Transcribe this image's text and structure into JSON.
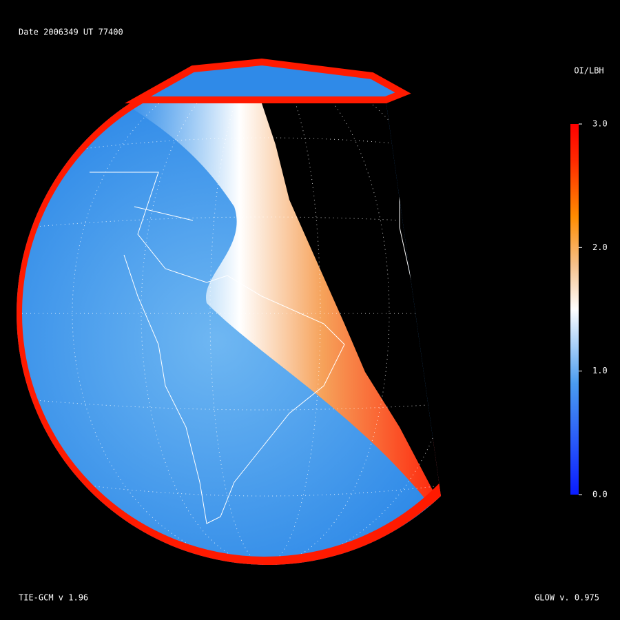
{
  "header": {
    "date_label": "Date 2006349   UT 77400"
  },
  "colorbar": {
    "title": "OI/LBH",
    "range": [
      0,
      3
    ],
    "ticks": [
      {
        "value": 3,
        "label": "3.0"
      },
      {
        "value": 2,
        "label": "2.0"
      },
      {
        "value": 1,
        "label": "1.0"
      },
      {
        "value": 0,
        "label": "0.0"
      }
    ]
  },
  "footer": {
    "left": "TIE-GCM v 1.96",
    "right": "GLOW v. 0.975"
  }
}
